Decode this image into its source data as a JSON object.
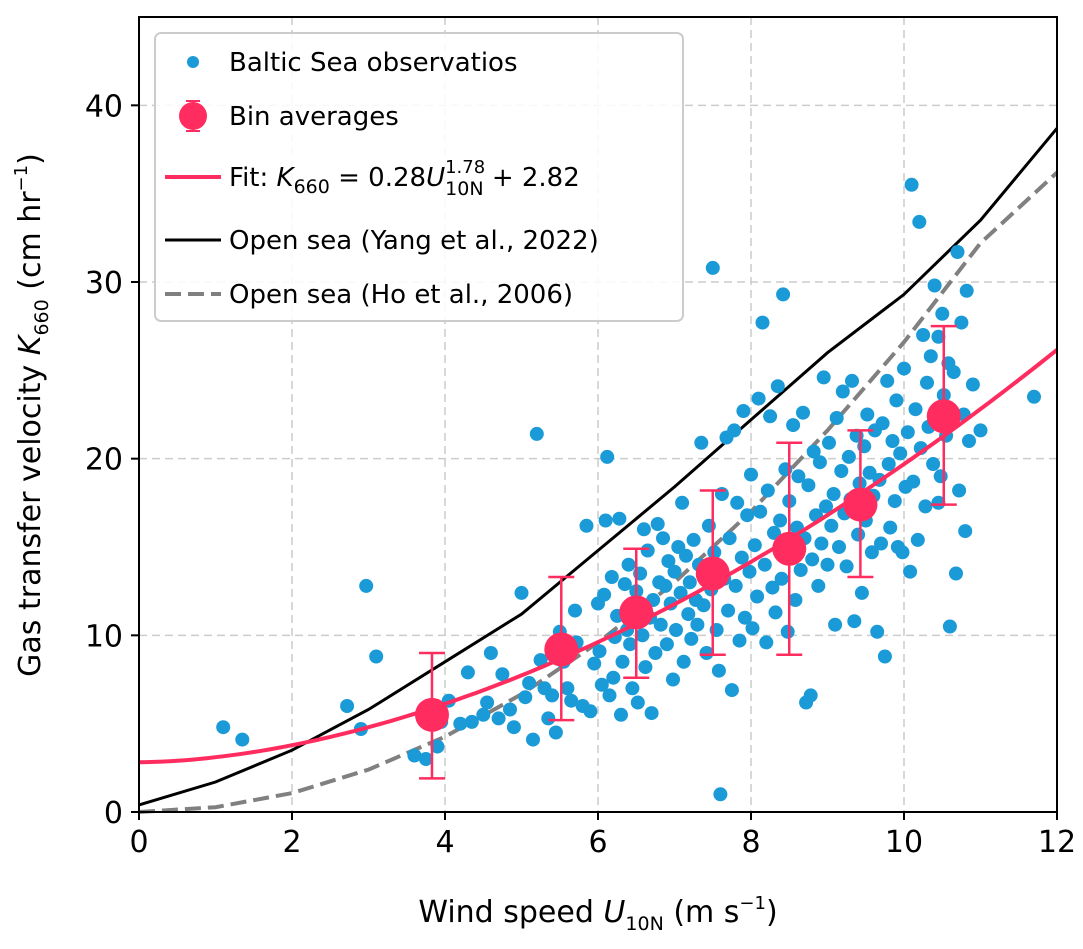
{
  "chart_data": {
    "type": "scatter",
    "xlabel": "Wind speed U10N (m s−1)",
    "ylabel": "Gas transfer velocity K660 (cm hr−1)",
    "xlim": [
      0,
      12
    ],
    "ylim": [
      0,
      45
    ],
    "xticks": [
      "0",
      "2",
      "4",
      "6",
      "8",
      "10",
      "12"
    ],
    "yticks": [
      "0",
      "10",
      "20",
      "30",
      "40"
    ],
    "grid": true,
    "legend_position": "top-left",
    "colors": {
      "observations": "#1a9ad6",
      "bins": "#ff2d5f",
      "fit": "#ff2d5f",
      "yang": "#000000",
      "ho": "#808080"
    },
    "legend": {
      "observations": "Baltic Sea observatios",
      "bins": "Bin averages",
      "fit_prefix": "Fit: ",
      "fit_k": "K",
      "fit_k_sub": "660",
      "fit_eq_a": " = 0.28",
      "fit_u": "U",
      "fit_u_sup": "1.78",
      "fit_u_sub": "10N",
      "fit_eq_b": " + 2.82",
      "yang": "Open sea (Yang et al., 2022)",
      "ho": "Open sea (Ho et al., 2006)"
    },
    "axis_text": {
      "x_main": "Wind speed ",
      "x_var": "U",
      "x_var_sub": "10N",
      "x_units_a": " (m s",
      "x_units_sup": "−1",
      "x_units_b": ")",
      "y_main": "Gas transfer velocity ",
      "y_var": "K",
      "y_var_sub": "660",
      "y_units_a": " (cm hr",
      "y_units_sup": "−1",
      "y_units_b": ")"
    },
    "fit": {
      "a": 0.28,
      "b": 1.78,
      "c": 2.82
    },
    "bin_averages": [
      {
        "x": 3.83,
        "y": 5.5,
        "yerr_low": 1.9,
        "yerr_high": 9.0
      },
      {
        "x": 5.52,
        "y": 9.2,
        "yerr_low": 5.2,
        "yerr_high": 13.3
      },
      {
        "x": 6.5,
        "y": 11.3,
        "yerr_low": 7.6,
        "yerr_high": 14.9
      },
      {
        "x": 7.5,
        "y": 13.5,
        "yerr_low": 8.9,
        "yerr_high": 18.2
      },
      {
        "x": 8.5,
        "y": 14.9,
        "yerr_low": 8.9,
        "yerr_high": 20.9
      },
      {
        "x": 9.43,
        "y": 17.4,
        "yerr_low": 13.3,
        "yerr_high": 21.6
      },
      {
        "x": 10.52,
        "y": 22.4,
        "yerr_low": 17.4,
        "yerr_high": 27.5
      }
    ],
    "yang_curve": [
      [
        0,
        0.4
      ],
      [
        1,
        1.7
      ],
      [
        2,
        3.5
      ],
      [
        3,
        5.8
      ],
      [
        4,
        8.5
      ],
      [
        5,
        11.2
      ],
      [
        6,
        14.8
      ],
      [
        7,
        18.4
      ],
      [
        8,
        22.2
      ],
      [
        9,
        26.0
      ],
      [
        10,
        29.3
      ],
      [
        11,
        33.5
      ],
      [
        12,
        38.7
      ]
    ],
    "ho_curve": [
      [
        0,
        0.0
      ],
      [
        1,
        0.27
      ],
      [
        2,
        1.07
      ],
      [
        3,
        2.4
      ],
      [
        4,
        4.26
      ],
      [
        5,
        6.66
      ],
      [
        6,
        9.59
      ],
      [
        7,
        13.0
      ],
      [
        8,
        17.0
      ],
      [
        9,
        21.6
      ],
      [
        10,
        26.6
      ],
      [
        11,
        32.2
      ],
      [
        12,
        36.2
      ]
    ],
    "observations": [
      [
        1.1,
        4.8
      ],
      [
        1.35,
        4.1
      ],
      [
        2.72,
        6.0
      ],
      [
        2.9,
        4.7
      ],
      [
        2.97,
        12.8
      ],
      [
        3.1,
        8.8
      ],
      [
        3.6,
        3.2
      ],
      [
        3.75,
        3.0
      ],
      [
        3.9,
        3.7
      ],
      [
        3.95,
        5.1
      ],
      [
        4.05,
        6.3
      ],
      [
        4.2,
        5.0
      ],
      [
        4.3,
        7.9
      ],
      [
        4.35,
        5.1
      ],
      [
        4.5,
        5.5
      ],
      [
        4.55,
        6.2
      ],
      [
        4.6,
        9.0
      ],
      [
        4.7,
        5.3
      ],
      [
        4.75,
        7.8
      ],
      [
        4.85,
        5.8
      ],
      [
        4.9,
        4.8
      ],
      [
        5.0,
        12.4
      ],
      [
        5.05,
        6.5
      ],
      [
        5.1,
        7.3
      ],
      [
        5.15,
        4.1
      ],
      [
        5.2,
        21.4
      ],
      [
        5.25,
        8.6
      ],
      [
        5.3,
        7.0
      ],
      [
        5.35,
        5.3
      ],
      [
        5.4,
        6.6
      ],
      [
        5.45,
        4.5
      ],
      [
        5.5,
        10.2
      ],
      [
        5.55,
        8.5
      ],
      [
        5.6,
        7.0
      ],
      [
        5.65,
        6.3
      ],
      [
        5.7,
        11.4
      ],
      [
        5.72,
        9.6
      ],
      [
        5.8,
        6.0
      ],
      [
        5.85,
        16.2
      ],
      [
        5.9,
        5.7
      ],
      [
        5.95,
        8.4
      ],
      [
        6.0,
        11.8
      ],
      [
        6.02,
        9.1
      ],
      [
        6.05,
        7.2
      ],
      [
        6.08,
        12.3
      ],
      [
        6.1,
        16.5
      ],
      [
        6.12,
        20.1
      ],
      [
        6.15,
        6.6
      ],
      [
        6.18,
        13.3
      ],
      [
        6.2,
        7.6
      ],
      [
        6.22,
        9.9
      ],
      [
        6.25,
        11.1
      ],
      [
        6.28,
        16.6
      ],
      [
        6.3,
        5.5
      ],
      [
        6.32,
        8.5
      ],
      [
        6.35,
        12.9
      ],
      [
        6.38,
        10.3
      ],
      [
        6.4,
        14.0
      ],
      [
        6.42,
        9.5
      ],
      [
        6.45,
        7.0
      ],
      [
        6.48,
        11.6
      ],
      [
        6.5,
        12.5
      ],
      [
        6.52,
        6.2
      ],
      [
        6.55,
        13.5
      ],
      [
        6.58,
        10.0
      ],
      [
        6.6,
        16.0
      ],
      [
        6.62,
        8.2
      ],
      [
        6.65,
        14.8
      ],
      [
        6.68,
        11.0
      ],
      [
        6.7,
        5.6
      ],
      [
        6.72,
        12.0
      ],
      [
        6.75,
        9.0
      ],
      [
        6.78,
        16.3
      ],
      [
        6.8,
        13.0
      ],
      [
        6.82,
        10.6
      ],
      [
        6.85,
        15.5
      ],
      [
        6.88,
        12.8
      ],
      [
        6.9,
        9.5
      ],
      [
        6.92,
        14.2
      ],
      [
        6.95,
        11.8
      ],
      [
        6.98,
        7.5
      ],
      [
        7.0,
        13.6
      ],
      [
        7.02,
        10.3
      ],
      [
        7.05,
        15.0
      ],
      [
        7.08,
        12.4
      ],
      [
        7.1,
        17.5
      ],
      [
        7.12,
        8.5
      ],
      [
        7.15,
        14.5
      ],
      [
        7.18,
        11.2
      ],
      [
        7.2,
        13.0
      ],
      [
        7.22,
        9.8
      ],
      [
        7.25,
        15.4
      ],
      [
        7.28,
        12.0
      ],
      [
        7.3,
        10.6
      ],
      [
        7.32,
        14.0
      ],
      [
        7.35,
        20.9
      ],
      [
        7.38,
        11.7
      ],
      [
        7.4,
        13.3
      ],
      [
        7.42,
        9.0
      ],
      [
        7.45,
        16.2
      ],
      [
        7.48,
        12.6
      ],
      [
        7.5,
        30.8
      ],
      [
        7.52,
        14.7
      ],
      [
        7.55,
        10.3
      ],
      [
        7.58,
        8.0
      ],
      [
        7.6,
        1.0
      ],
      [
        7.62,
        18.0
      ],
      [
        7.65,
        13.2
      ],
      [
        7.68,
        21.2
      ],
      [
        7.7,
        11.4
      ],
      [
        7.72,
        15.5
      ],
      [
        7.75,
        6.9
      ],
      [
        7.78,
        21.6
      ],
      [
        7.8,
        12.8
      ],
      [
        7.82,
        17.5
      ],
      [
        7.85,
        9.7
      ],
      [
        7.88,
        14.4
      ],
      [
        7.9,
        22.7
      ],
      [
        7.92,
        11.0
      ],
      [
        7.95,
        16.8
      ],
      [
        7.98,
        13.6
      ],
      [
        8.0,
        19.1
      ],
      [
        8.02,
        10.4
      ],
      [
        8.05,
        15.1
      ],
      [
        8.08,
        12.2
      ],
      [
        8.1,
        23.4
      ],
      [
        8.12,
        17.0
      ],
      [
        8.15,
        27.7
      ],
      [
        8.18,
        14.0
      ],
      [
        8.2,
        9.6
      ],
      [
        8.22,
        18.2
      ],
      [
        8.25,
        22.4
      ],
      [
        8.28,
        12.7
      ],
      [
        8.3,
        15.8
      ],
      [
        8.32,
        11.3
      ],
      [
        8.35,
        24.1
      ],
      [
        8.38,
        16.5
      ],
      [
        8.4,
        13.2
      ],
      [
        8.42,
        29.3
      ],
      [
        8.45,
        19.4
      ],
      [
        8.48,
        10.2
      ],
      [
        8.5,
        17.6
      ],
      [
        8.52,
        14.5
      ],
      [
        8.55,
        21.9
      ],
      [
        8.58,
        12.0
      ],
      [
        8.6,
        16.1
      ],
      [
        8.62,
        19.0
      ],
      [
        8.65,
        13.7
      ],
      [
        8.68,
        22.6
      ],
      [
        8.7,
        15.5
      ],
      [
        8.72,
        6.2
      ],
      [
        8.75,
        18.5
      ],
      [
        8.78,
        6.6
      ],
      [
        8.8,
        14.3
      ],
      [
        8.82,
        20.4
      ],
      [
        8.85,
        16.8
      ],
      [
        8.88,
        12.8
      ],
      [
        8.9,
        19.8
      ],
      [
        8.92,
        15.2
      ],
      [
        8.95,
        24.6
      ],
      [
        8.98,
        17.3
      ],
      [
        9.0,
        14.0
      ],
      [
        9.02,
        20.9
      ],
      [
        9.05,
        16.2
      ],
      [
        9.08,
        18.0
      ],
      [
        9.1,
        10.6
      ],
      [
        9.12,
        22.3
      ],
      [
        9.15,
        15.0
      ],
      [
        9.18,
        19.3
      ],
      [
        9.2,
        23.8
      ],
      [
        9.22,
        16.9
      ],
      [
        9.25,
        13.9
      ],
      [
        9.28,
        20.1
      ],
      [
        9.3,
        17.7
      ],
      [
        9.32,
        24.4
      ],
      [
        9.35,
        10.8
      ],
      [
        9.38,
        21.3
      ],
      [
        9.4,
        15.7
      ],
      [
        9.42,
        18.6
      ],
      [
        9.45,
        12.4
      ],
      [
        9.48,
        20.7
      ],
      [
        9.5,
        16.5
      ],
      [
        9.52,
        22.5
      ],
      [
        9.55,
        19.2
      ],
      [
        9.58,
        14.7
      ],
      [
        9.6,
        17.9
      ],
      [
        9.62,
        21.6
      ],
      [
        9.65,
        10.2
      ],
      [
        9.68,
        18.8
      ],
      [
        9.7,
        15.2
      ],
      [
        9.72,
        22.0
      ],
      [
        9.75,
        8.8
      ],
      [
        9.78,
        24.4
      ],
      [
        9.8,
        19.7
      ],
      [
        9.82,
        16.1
      ],
      [
        9.85,
        21.0
      ],
      [
        9.88,
        17.6
      ],
      [
        9.9,
        23.3
      ],
      [
        9.92,
        15.0
      ],
      [
        9.95,
        20.3
      ],
      [
        9.98,
        14.7
      ],
      [
        10.0,
        25.1
      ],
      [
        10.02,
        18.4
      ],
      [
        10.05,
        21.5
      ],
      [
        10.08,
        13.6
      ],
      [
        10.1,
        35.5
      ],
      [
        10.12,
        18.7
      ],
      [
        10.15,
        22.8
      ],
      [
        10.18,
        15.4
      ],
      [
        10.2,
        33.4
      ],
      [
        10.22,
        20.6
      ],
      [
        10.25,
        27.0
      ],
      [
        10.28,
        17.3
      ],
      [
        10.3,
        24.3
      ],
      [
        10.32,
        21.8
      ],
      [
        10.35,
        25.8
      ],
      [
        10.38,
        19.7
      ],
      [
        10.4,
        29.8
      ],
      [
        10.42,
        22.7
      ],
      [
        10.45,
        26.9
      ],
      [
        10.48,
        19.0
      ],
      [
        10.5,
        28.2
      ],
      [
        10.52,
        23.6
      ],
      [
        10.55,
        21.3
      ],
      [
        10.58,
        25.4
      ],
      [
        10.6,
        10.5
      ],
      [
        10.62,
        22.1
      ],
      [
        10.65,
        24.9
      ],
      [
        10.68,
        13.5
      ],
      [
        10.7,
        31.7
      ],
      [
        10.72,
        18.2
      ],
      [
        10.75,
        27.7
      ],
      [
        10.78,
        22.5
      ],
      [
        10.8,
        15.9
      ],
      [
        10.82,
        29.5
      ],
      [
        10.85,
        21.0
      ],
      [
        10.9,
        24.2
      ],
      [
        11.0,
        21.6
      ],
      [
        11.7,
        23.5
      ],
      [
        10.45,
        17.5
      ]
    ]
  }
}
